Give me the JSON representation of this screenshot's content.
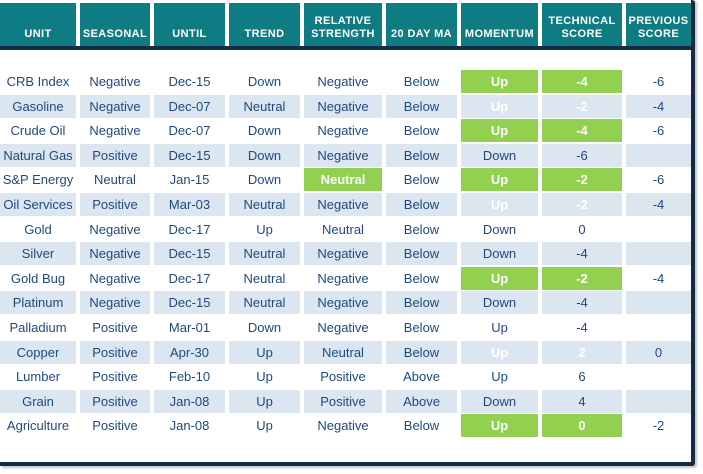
{
  "colors": {
    "header_teal": "#0E7C82",
    "row_alt_blue": "#DCE6F1",
    "highlight_green": "#92D050",
    "text_navy": "#1F497D",
    "border_navy": "#152B45"
  },
  "chart_data": {
    "type": "table",
    "columns": [
      "UNIT",
      "SEASONAL",
      "UNTIL",
      "TREND",
      "RELATIVE STRENGTH",
      "20 DAY MA",
      "MOMENTUM",
      "TECHNICAL SCORE",
      "PREVIOUS SCORE"
    ],
    "rows": [
      {
        "unit": "CRB Index",
        "seasonal": "Negative",
        "until": "Dec-15",
        "trend": "Down",
        "relative_strength": "Negative",
        "relative_strength_hl": false,
        "ma_20": "Below",
        "momentum": "Up",
        "momentum_hl": true,
        "technical_score": "-4",
        "technical_score_hl": true,
        "previous_score": "-6"
      },
      {
        "unit": "Gasoline",
        "seasonal": "Negative",
        "until": "Dec-07",
        "trend": "Neutral",
        "relative_strength": "Negative",
        "relative_strength_hl": false,
        "ma_20": "Below",
        "momentum": "Up",
        "momentum_hl": true,
        "technical_score": "-2",
        "technical_score_hl": true,
        "previous_score": "-4"
      },
      {
        "unit": "Crude Oil",
        "seasonal": "Negative",
        "until": "Dec-07",
        "trend": "Down",
        "relative_strength": "Negative",
        "relative_strength_hl": false,
        "ma_20": "Below",
        "momentum": "Up",
        "momentum_hl": true,
        "technical_score": "-4",
        "technical_score_hl": true,
        "previous_score": "-6"
      },
      {
        "unit": "Natural Gas",
        "seasonal": "Positive",
        "until": "Dec-15",
        "trend": "Down",
        "relative_strength": "Negative",
        "relative_strength_hl": false,
        "ma_20": "Below",
        "momentum": "Down",
        "momentum_hl": false,
        "technical_score": "-6",
        "technical_score_hl": false,
        "previous_score": ""
      },
      {
        "unit": "S&P Energy",
        "seasonal": "Neutral",
        "until": "Jan-15",
        "trend": "Down",
        "relative_strength": "Neutral",
        "relative_strength_hl": true,
        "ma_20": "Below",
        "momentum": "Up",
        "momentum_hl": true,
        "technical_score": "-2",
        "technical_score_hl": true,
        "previous_score": "-6"
      },
      {
        "unit": "Oil Services",
        "seasonal": "Positive",
        "until": "Mar-03",
        "trend": "Neutral",
        "relative_strength": "Negative",
        "relative_strength_hl": false,
        "ma_20": "Below",
        "momentum": "Up",
        "momentum_hl": true,
        "technical_score": "-2",
        "technical_score_hl": true,
        "previous_score": "-4"
      },
      {
        "unit": "Gold",
        "seasonal": "Negative",
        "until": "Dec-17",
        "trend": "Up",
        "relative_strength": "Neutral",
        "relative_strength_hl": false,
        "ma_20": "Below",
        "momentum": "Down",
        "momentum_hl": false,
        "technical_score": "0",
        "technical_score_hl": false,
        "previous_score": ""
      },
      {
        "unit": "Silver",
        "seasonal": "Negative",
        "until": "Dec-15",
        "trend": "Neutral",
        "relative_strength": "Negative",
        "relative_strength_hl": false,
        "ma_20": "Below",
        "momentum": "Down",
        "momentum_hl": false,
        "technical_score": "-4",
        "technical_score_hl": false,
        "previous_score": ""
      },
      {
        "unit": "Gold Bug",
        "seasonal": "Negative",
        "until": "Dec-17",
        "trend": "Neutral",
        "relative_strength": "Negative",
        "relative_strength_hl": false,
        "ma_20": "Below",
        "momentum": "Up",
        "momentum_hl": true,
        "technical_score": "-2",
        "technical_score_hl": true,
        "previous_score": "-4"
      },
      {
        "unit": "Platinum",
        "seasonal": "Negative",
        "until": "Dec-15",
        "trend": "Neutral",
        "relative_strength": "Negative",
        "relative_strength_hl": false,
        "ma_20": "Below",
        "momentum": "Down",
        "momentum_hl": false,
        "technical_score": "-4",
        "technical_score_hl": false,
        "previous_score": ""
      },
      {
        "unit": "Palladium",
        "seasonal": "Positive",
        "until": "Mar-01",
        "trend": "Down",
        "relative_strength": "Negative",
        "relative_strength_hl": false,
        "ma_20": "Below",
        "momentum": "Up",
        "momentum_hl": false,
        "technical_score": "-4",
        "technical_score_hl": false,
        "previous_score": ""
      },
      {
        "unit": "Copper",
        "seasonal": "Positive",
        "until": "Apr-30",
        "trend": "Up",
        "relative_strength": "Neutral",
        "relative_strength_hl": false,
        "ma_20": "Below",
        "momentum": "Up",
        "momentum_hl": true,
        "technical_score": "2",
        "technical_score_hl": true,
        "previous_score": "0"
      },
      {
        "unit": "Lumber",
        "seasonal": "Positive",
        "until": "Feb-10",
        "trend": "Up",
        "relative_strength": "Positive",
        "relative_strength_hl": false,
        "ma_20": "Above",
        "momentum": "Up",
        "momentum_hl": false,
        "technical_score": "6",
        "technical_score_hl": false,
        "previous_score": ""
      },
      {
        "unit": "Grain",
        "seasonal": "Positive",
        "until": "Jan-08",
        "trend": "Up",
        "relative_strength": "Positive",
        "relative_strength_hl": false,
        "ma_20": "Above",
        "momentum": "Down",
        "momentum_hl": false,
        "technical_score": "4",
        "technical_score_hl": false,
        "previous_score": ""
      },
      {
        "unit": "Agriculture",
        "seasonal": "Positive",
        "until": "Jan-08",
        "trend": "Up",
        "relative_strength": "Negative",
        "relative_strength_hl": false,
        "ma_20": "Below",
        "momentum": "Up",
        "momentum_hl": true,
        "technical_score": "0",
        "technical_score_hl": true,
        "previous_score": "-2"
      }
    ]
  }
}
